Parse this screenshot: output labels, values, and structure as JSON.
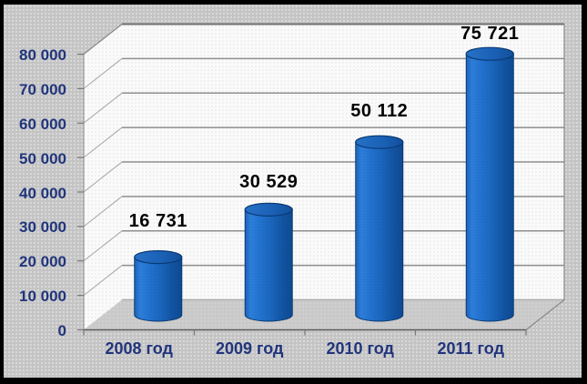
{
  "chart_data": {
    "type": "bar",
    "subtype": "3d-cylinder-column",
    "title": "",
    "categories": [
      "2008 год",
      "2009 год",
      "2010 год",
      "2011 год"
    ],
    "values": [
      16731,
      30529,
      50112,
      75721
    ],
    "data_labels": [
      "16 731",
      "30 529",
      "50 112",
      "75 721"
    ],
    "xlabel": "",
    "ylabel": "",
    "ylim": [
      0,
      80000
    ],
    "y_tick_step": 10000,
    "y_ticks": [
      0,
      10000,
      20000,
      30000,
      40000,
      50000,
      60000,
      70000,
      80000
    ],
    "y_tick_labels": [
      "0",
      "10 000",
      "20 000",
      "30 000",
      "40 000",
      "50 000",
      "60 000",
      "70 000",
      "80 000"
    ],
    "grid": true,
    "legend": false,
    "colors": {
      "bar_light": "#2e80dc",
      "bar_main": "#1b66be",
      "bar_dark": "#0e4a92",
      "bar_outline": "#0b3a74",
      "axis_label": "#21357c",
      "data_label": "#000000",
      "wall": "#fafafa",
      "floor": "#c9c9c9",
      "gridline": "#8f8f8f",
      "background": "#c4c4c4",
      "frame_border": "#000000"
    }
  }
}
